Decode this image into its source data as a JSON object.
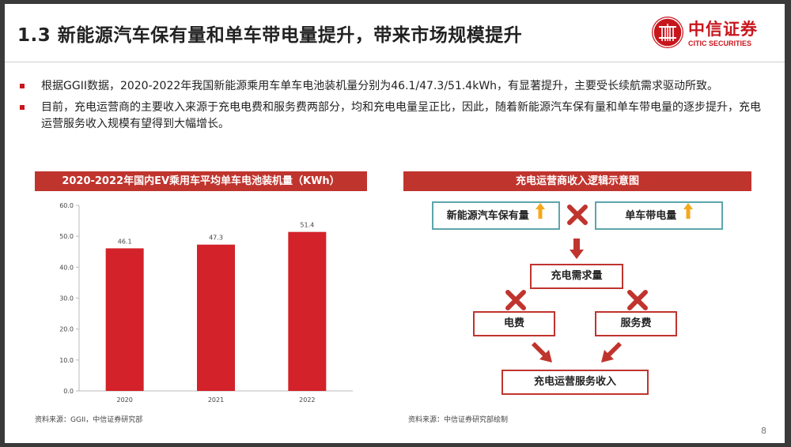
{
  "header": {
    "title": "1.3 新能源汽车保有量和单车带电量提升，带来市场规模提升",
    "logo_cn": "中信证券",
    "logo_en": "CITIC SECURITIES"
  },
  "bullets": [
    "根据GGII数据，2020-2022年我国新能源乘用车单车电池装机量分别为46.1/47.3/51.4kWh，有显著提升，主要受长续航需求驱动所致。",
    "目前，充电运营商的主要收入来源于充电电费和服务费两部分，均和充电电量呈正比，因此，随着新能源汽车保有量和单车带电量的逐步提升，充电运营服务收入规模有望得到大幅增长。"
  ],
  "left_panel": {
    "title": "2020-2022年国内EV乘用车平均单车电池装机量（KWh）",
    "source": "资料来源：GGII，中信证券研究部"
  },
  "right_panel": {
    "title": "充电运营商收入逻辑示意图",
    "source": "资料来源：中信证券研究部绘制",
    "nodes": {
      "ev_stock": "新能源汽车保有量",
      "battery_per_car": "单车带电量",
      "charging_demand": "充电需求量",
      "electricity_fee": "电费",
      "service_fee": "服务费",
      "revenue": "充电运营服务收入"
    },
    "colors": {
      "red": "#c0342e",
      "teal": "#5ea5ac",
      "arrow_up": "#f5a81c"
    }
  },
  "chart_data": {
    "type": "bar",
    "categories": [
      "2020",
      "2021",
      "2022"
    ],
    "values": [
      46.1,
      47.3,
      51.4
    ],
    "value_labels": [
      "46.1",
      "47.3",
      "51.4"
    ],
    "yticks": [
      "0.0",
      "10.0",
      "20.0",
      "30.0",
      "40.0",
      "50.0",
      "60.0"
    ],
    "ylim": [
      0,
      60
    ],
    "grid": false,
    "bar_color": "#d3222a"
  },
  "footer": {
    "page_number": "8"
  }
}
